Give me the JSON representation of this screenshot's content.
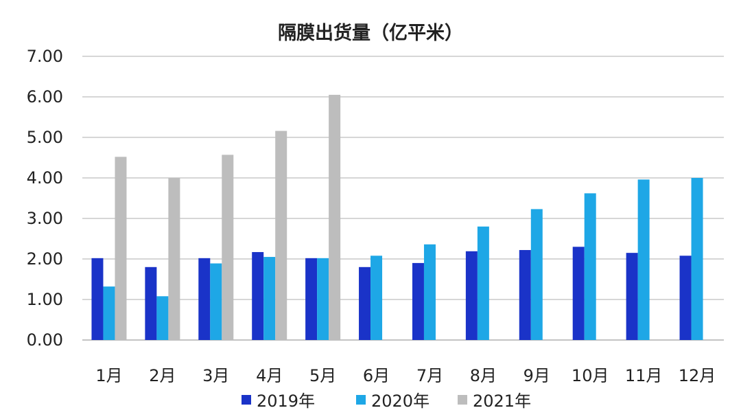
{
  "chart_data": {
    "type": "bar",
    "title": "隔膜出货量（亿平米）",
    "categories": [
      "1月",
      "2月",
      "3月",
      "4月",
      "5月",
      "6月",
      "7月",
      "8月",
      "9月",
      "10月",
      "11月",
      "12月"
    ],
    "series": [
      {
        "name": "2019年",
        "color": "#1a33c8",
        "values": [
          2.02,
          1.8,
          2.02,
          2.17,
          2.02,
          1.8,
          1.9,
          2.19,
          2.22,
          2.3,
          2.15,
          2.08
        ]
      },
      {
        "name": "2020年",
        "color": "#1ea7e6",
        "values": [
          1.32,
          1.08,
          1.89,
          2.05,
          2.02,
          2.08,
          2.36,
          2.8,
          3.23,
          3.62,
          3.96,
          4.0
        ]
      },
      {
        "name": "2021年",
        "color": "#bdbdbd",
        "values": [
          4.52,
          4.0,
          4.57,
          5.16,
          6.05,
          null,
          null,
          null,
          null,
          null,
          null,
          null
        ]
      }
    ],
    "ylim": [
      0,
      7
    ],
    "yticks": [
      "0.00",
      "1.00",
      "2.00",
      "3.00",
      "4.00",
      "5.00",
      "6.00",
      "7.00"
    ],
    "grid": true,
    "legend": "bottom"
  }
}
